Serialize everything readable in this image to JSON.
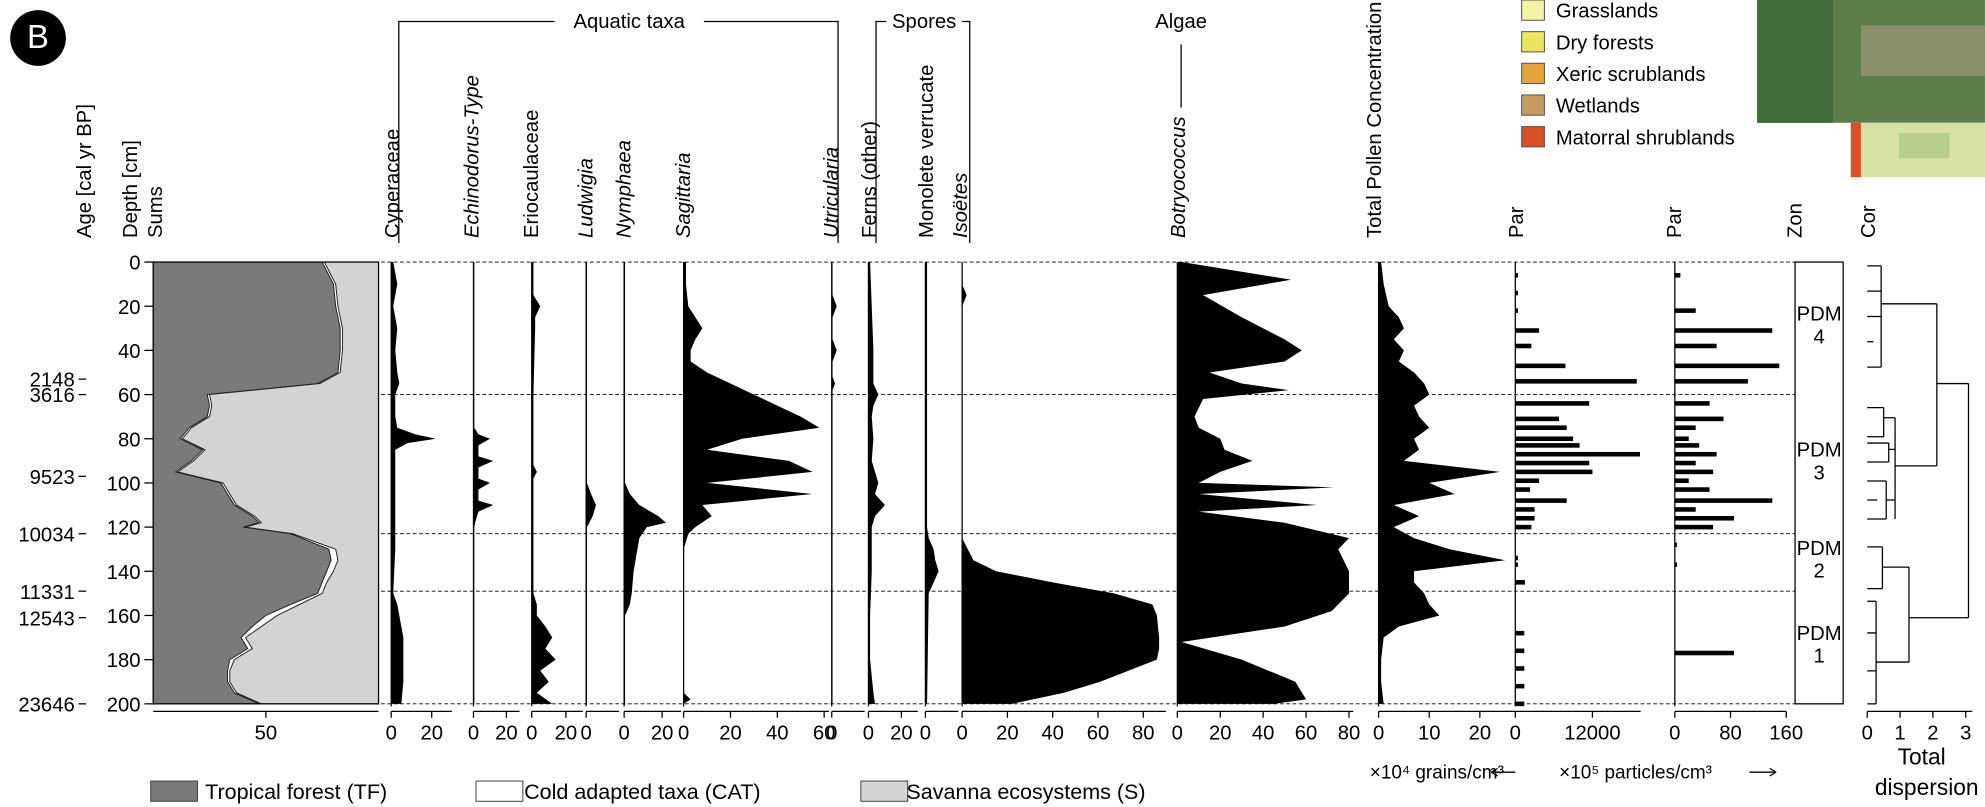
{
  "badge": "B",
  "vegetation_legend": [
    {
      "name": "Grasslands",
      "color": "#f6f3a6"
    },
    {
      "name": "Dry forests",
      "color": "#ece55c"
    },
    {
      "name": "Xeric scrublands",
      "color": "#e6a43d"
    },
    {
      "name": "Wetlands",
      "color": "#c59c5e"
    },
    {
      "name": "Matorral shrublands",
      "color": "#d94f28"
    }
  ],
  "chart_data": {
    "type": "stratigraphic",
    "age_label": "Age [cal yr BP]",
    "depth_label": "Depth [cm]",
    "group_labels": [
      "Aquatic taxa",
      "Spores",
      "Algae"
    ],
    "ylim": [
      0,
      200
    ],
    "yticks": [
      0,
      20,
      40,
      60,
      80,
      100,
      120,
      140,
      160,
      180,
      200
    ],
    "age_ticks": [
      {
        "value": 53,
        "label": "2148"
      },
      {
        "value": 60,
        "label": "3616"
      },
      {
        "value": 97,
        "label": "9523"
      },
      {
        "value": 123,
        "label": "10034"
      },
      {
        "value": 149,
        "label": "11331"
      },
      {
        "value": 161,
        "label": "12543"
      },
      {
        "value": 200,
        "label": "23646"
      }
    ],
    "zone_boundaries": [
      0,
      60,
      123,
      149,
      200
    ],
    "concentration_unit": "×10⁴ grains/cm³",
    "particle_unit": "×10⁵ particles/cm³",
    "panels": [
      {
        "type": "stacked-area",
        "title": "Sums",
        "xlim": [
          0,
          100
        ],
        "xticks": [
          50
        ],
        "depth": [
          0,
          10,
          20,
          30,
          40,
          50,
          55,
          60,
          65,
          70,
          75,
          80,
          85,
          90,
          95,
          100,
          105,
          110,
          115,
          118,
          120,
          123,
          130,
          135,
          140,
          145,
          150,
          155,
          160,
          165,
          170,
          175,
          180,
          185,
          190,
          195,
          200
        ],
        "series": [
          {
            "name": "Tropical forest (TF)",
            "color": "#7a7a7a",
            "values": [
              75,
              80,
              81,
              83,
              83,
              82,
              73,
              24,
              25,
              24,
              16,
              12,
              22,
              17,
              10,
              30,
              33,
              36,
              44,
              47,
              40,
              61,
              78,
              79,
              77,
              75,
              73,
              61,
              50,
              44,
              39,
              42,
              34,
              33,
              33,
              36,
              47
            ]
          },
          {
            "name": "Cold adapted taxa (CAT)",
            "color": "#ffffff",
            "values": [
              1,
              1,
              1,
              1,
              1,
              1,
              1,
              1,
              1,
              1,
              1,
              1,
              1,
              1,
              1,
              1,
              1,
              1,
              1,
              1,
              1,
              1,
              3,
              3,
              3,
              2,
              2,
              4,
              5,
              4,
              2,
              2,
              2,
              1,
              1,
              1,
              1
            ]
          },
          {
            "name": "Savanna ecosystems (S)",
            "color": "#d3d3d3",
            "values": [
              24,
              19,
              18,
              16,
              16,
              17,
              26,
              75,
              74,
              75,
              83,
              87,
              77,
              82,
              89,
              69,
              66,
              63,
              55,
              52,
              59,
              38,
              19,
              18,
              20,
              23,
              25,
              35,
              45,
              52,
              59,
              56,
              64,
              66,
              66,
              63,
              52
            ]
          }
        ]
      },
      {
        "type": "area",
        "title": "Cyperaceae",
        "italic": false,
        "xlim": [
          0,
          30
        ],
        "xticks": [
          0,
          20
        ],
        "depth": [
          0,
          10,
          20,
          30,
          40,
          50,
          55,
          60,
          70,
          75,
          78,
          80,
          82,
          85,
          100,
          110,
          120,
          130,
          150,
          155,
          160,
          170,
          180,
          190,
          200
        ],
        "values": [
          1,
          3,
          1,
          3,
          2,
          3,
          4,
          2,
          2,
          3,
          12,
          22,
          8,
          2,
          2,
          2,
          2,
          2,
          1,
          3,
          4,
          6,
          6,
          6,
          5
        ]
      },
      {
        "type": "area",
        "title": "Echinodorus-Type",
        "italic": true,
        "xlim": [
          0,
          28
        ],
        "xticks": [
          0,
          20
        ],
        "depth": [
          0,
          75,
          78,
          80,
          83,
          88,
          90,
          93,
          98,
          100,
          103,
          108,
          110,
          113,
          118,
          120,
          200
        ],
        "values": [
          0.5,
          0.5,
          3,
          10,
          3,
          3,
          12,
          3,
          3,
          10,
          3,
          3,
          12,
          3,
          1,
          0.5,
          0.5
        ]
      },
      {
        "type": "area",
        "title": "Eriocaulaceae",
        "italic": false,
        "xlim": [
          0,
          30
        ],
        "xticks": [
          0,
          20
        ],
        "depth": [
          0,
          15,
          20,
          25,
          30,
          60,
          92,
          95,
          98,
          150,
          155,
          160,
          165,
          170,
          175,
          180,
          185,
          190,
          195,
          200
        ],
        "values": [
          1,
          1,
          5,
          2,
          2,
          1,
          1,
          3,
          1,
          1,
          3,
          3,
          8,
          12,
          8,
          14,
          5,
          10,
          3,
          12
        ]
      },
      {
        "type": "area",
        "title": "Ludwigia",
        "italic": true,
        "xlim": [
          0,
          20
        ],
        "xticks": [
          0
        ],
        "depth": [
          0,
          100,
          105,
          110,
          115,
          120,
          200
        ],
        "values": [
          0.5,
          0.5,
          3,
          6,
          4,
          0.5,
          0.5
        ]
      },
      {
        "type": "area",
        "title": "Nymphaea",
        "italic": true,
        "xlim": [
          0,
          30
        ],
        "xticks": [
          0,
          20
        ],
        "depth": [
          0,
          100,
          105,
          110,
          115,
          118,
          120,
          125,
          130,
          140,
          150,
          155,
          160,
          200
        ],
        "values": [
          0.5,
          0.5,
          3,
          8,
          18,
          22,
          12,
          8,
          7,
          5,
          4,
          3,
          0.5,
          0.5
        ]
      },
      {
        "type": "area",
        "title": "Sagittaria",
        "italic": true,
        "xlim": [
          0,
          62
        ],
        "xticks": [
          0,
          20,
          40,
          60
        ],
        "depth": [
          0,
          10,
          20,
          25,
          30,
          35,
          40,
          45,
          50,
          55,
          60,
          65,
          70,
          75,
          80,
          85,
          90,
          95,
          100,
          105,
          110,
          115,
          120,
          123,
          130,
          195,
          198,
          200
        ],
        "values": [
          1,
          1,
          2,
          5,
          8,
          5,
          3,
          3,
          10,
          20,
          30,
          40,
          50,
          58,
          25,
          10,
          45,
          55,
          10,
          55,
          8,
          12,
          5,
          2,
          0,
          0,
          3,
          0
        ]
      },
      {
        "type": "area",
        "title": "Utricularia",
        "italic": true,
        "xlim": [
          0,
          20
        ],
        "xticks": [
          0
        ],
        "depth": [
          0,
          15,
          20,
          25,
          35,
          40,
          45,
          52,
          55,
          58,
          200
        ],
        "values": [
          0.5,
          0.5,
          3,
          0.5,
          0.5,
          3,
          0.5,
          0.5,
          2,
          0.5,
          0.5
        ]
      },
      {
        "type": "area",
        "title": "Ferns (other)",
        "italic": false,
        "xlim": [
          0,
          30
        ],
        "xticks": [
          0,
          20
        ],
        "depth": [
          0,
          20,
          40,
          55,
          60,
          65,
          70,
          80,
          90,
          100,
          105,
          110,
          115,
          120,
          140,
          160,
          180,
          195,
          200
        ],
        "values": [
          1,
          2,
          3,
          3,
          6,
          3,
          2,
          3,
          2,
          6,
          4,
          10,
          4,
          2,
          2,
          1,
          1,
          3,
          4
        ]
      },
      {
        "type": "area",
        "title": "Monolete verrucate",
        "italic": false,
        "xlim": [
          0,
          20
        ],
        "xticks": [
          0
        ],
        "depth": [
          0,
          120,
          125,
          130,
          135,
          140,
          145,
          150,
          200
        ],
        "values": [
          1,
          1,
          2,
          5,
          6,
          8,
          5,
          2,
          1
        ]
      },
      {
        "type": "area",
        "title": "Isoëtes",
        "italic": true,
        "xlim": [
          0,
          90
        ],
        "xticks": [
          0,
          20,
          40,
          60,
          80
        ],
        "depth": [
          0,
          10,
          15,
          20,
          30,
          125,
          135,
          140,
          145,
          150,
          155,
          160,
          170,
          175,
          180,
          190,
          195,
          200
        ],
        "values": [
          0,
          0,
          2,
          0,
          0,
          0,
          5,
          15,
          40,
          67,
          84,
          86,
          87,
          87,
          86,
          61,
          45,
          22
        ]
      },
      {
        "type": "area",
        "title": "Botryococcus",
        "italic": true,
        "xlim": [
          0,
          82
        ],
        "xticks": [
          0,
          20,
          40,
          60,
          80
        ],
        "depth": [
          0,
          8,
          15,
          25,
          35,
          40,
          45,
          50,
          55,
          58,
          62,
          70,
          75,
          80,
          85,
          90,
          95,
          100,
          102,
          105,
          110,
          113,
          118,
          125,
          130,
          140,
          150,
          158,
          165,
          172,
          180,
          190,
          198,
          200
        ],
        "values": [
          2,
          53,
          12,
          30,
          50,
          58,
          50,
          15,
          30,
          52,
          12,
          8,
          10,
          20,
          22,
          35,
          20,
          10,
          73,
          10,
          65,
          10,
          50,
          80,
          75,
          80,
          80,
          72,
          50,
          2,
          30,
          55,
          60,
          45
        ]
      },
      {
        "type": "area",
        "title": "Total Pollen Concentration",
        "italic": false,
        "xlim": [
          0,
          27
        ],
        "xticks": [
          0,
          10,
          20
        ],
        "depth": [
          0,
          10,
          20,
          25,
          30,
          35,
          40,
          45,
          50,
          55,
          60,
          65,
          70,
          75,
          80,
          85,
          90,
          95,
          100,
          105,
          110,
          115,
          120,
          125,
          130,
          135,
          140,
          145,
          150,
          155,
          160,
          165,
          170,
          180,
          190,
          200
        ],
        "values": [
          0.5,
          1,
          2,
          4,
          5,
          3,
          5,
          4,
          7,
          9,
          10,
          7,
          8,
          10,
          7,
          8,
          5,
          24,
          10,
          15,
          3,
          8,
          3,
          7,
          14,
          25,
          7,
          7,
          9,
          10,
          12,
          4,
          1,
          0.5,
          0.5,
          1
        ]
      },
      {
        "type": "bar",
        "title": "Par",
        "italic": false,
        "xlim": [
          0,
          19500
        ],
        "xticks": [
          0,
          12000
        ],
        "depth": [
          6,
          14,
          22,
          31,
          38,
          47,
          54,
          64,
          71,
          75,
          80,
          83,
          87,
          91,
          95,
          99,
          103,
          108,
          112,
          116,
          120,
          134,
          137,
          145,
          168,
          176,
          184,
          192,
          200
        ],
        "values": [
          400,
          400,
          400,
          3700,
          2500,
          7800,
          18900,
          11500,
          6800,
          8000,
          9000,
          10000,
          19400,
          11500,
          12000,
          3700,
          2300,
          8000,
          3000,
          3000,
          2500,
          400,
          400,
          1500,
          1400,
          1400,
          1400,
          1400,
          1400
        ]
      },
      {
        "type": "bar",
        "title": "Par",
        "italic": false,
        "xlim": [
          0,
          160
        ],
        "xticks": [
          0,
          80,
          160
        ],
        "depth": [
          6,
          22,
          31,
          38,
          47,
          54,
          64,
          71,
          75,
          80,
          83,
          87,
          91,
          95,
          99,
          103,
          108,
          112,
          116,
          120,
          128,
          137,
          177
        ],
        "values": [
          8,
          30,
          140,
          60,
          150,
          105,
          50,
          70,
          30,
          20,
          35,
          60,
          30,
          55,
          20,
          50,
          140,
          30,
          85,
          55,
          3,
          3,
          85
        ]
      },
      {
        "type": "zones",
        "title": "Zon",
        "labels": [
          [
            "PDM",
            "4"
          ],
          [
            "PDM",
            "3"
          ],
          [
            "PDM",
            "2"
          ],
          [
            "PDM",
            "1"
          ]
        ]
      },
      {
        "type": "dendrogram",
        "title": "Cor",
        "xlim": [
          0,
          3.2
        ],
        "xticks": [
          0,
          1,
          2,
          3
        ],
        "xlabel": [
          "Total",
          "dispersion"
        ]
      }
    ]
  }
}
